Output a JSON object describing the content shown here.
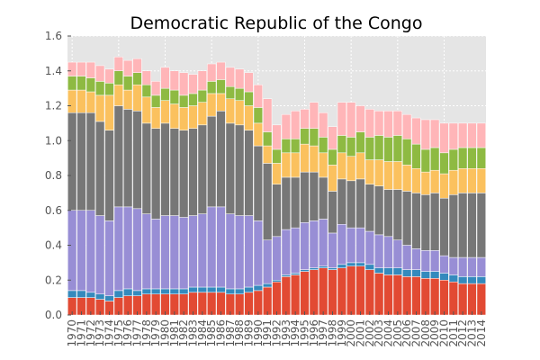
{
  "chart_data": {
    "type": "bar",
    "stacked": true,
    "title": "Democratic Republic of the Congo",
    "xlabel": "",
    "ylabel": "",
    "ylim": [
      0,
      1.6
    ],
    "yticks": [
      "0.0",
      "0.2",
      "0.4",
      "0.6",
      "0.8",
      "1.0",
      "1.2",
      "1.4",
      "1.6"
    ],
    "grid": true,
    "legend": "none",
    "background": "#e5e5e5",
    "categories": [
      "1970",
      "1971",
      "1972",
      "1973",
      "1974",
      "1975",
      "1976",
      "1977",
      "1978",
      "1979",
      "1980",
      "1981",
      "1982",
      "1983",
      "1984",
      "1985",
      "1986",
      "1987",
      "1988",
      "1989",
      "1990",
      "1991",
      "1992",
      "1993",
      "1994",
      "1995",
      "1996",
      "1997",
      "1998",
      "1999",
      "2000",
      "2001",
      "2002",
      "2003",
      "2004",
      "2005",
      "2006",
      "2007",
      "2008",
      "2009",
      "2010",
      "2011",
      "2012",
      "2013",
      "2014"
    ],
    "series": [
      {
        "color": "#e24a33",
        "values": [
          0.1,
          0.1,
          0.1,
          0.09,
          0.08,
          0.1,
          0.11,
          0.11,
          0.12,
          0.12,
          0.12,
          0.12,
          0.12,
          0.13,
          0.13,
          0.13,
          0.13,
          0.12,
          0.12,
          0.13,
          0.14,
          0.16,
          0.19,
          0.22,
          0.23,
          0.25,
          0.26,
          0.27,
          0.26,
          0.27,
          0.28,
          0.28,
          0.26,
          0.24,
          0.23,
          0.23,
          0.22,
          0.22,
          0.21,
          0.21,
          0.2,
          0.19,
          0.18,
          0.18,
          0.18
        ]
      },
      {
        "color": "#348abd",
        "values": [
          0.04,
          0.04,
          0.03,
          0.03,
          0.03,
          0.04,
          0.04,
          0.03,
          0.03,
          0.03,
          0.03,
          0.03,
          0.03,
          0.03,
          0.03,
          0.03,
          0.03,
          0.03,
          0.03,
          0.03,
          0.03,
          0.02,
          0.01,
          0.01,
          0.01,
          0.01,
          0.01,
          0.01,
          0.01,
          0.02,
          0.02,
          0.02,
          0.03,
          0.03,
          0.04,
          0.04,
          0.04,
          0.04,
          0.04,
          0.04,
          0.04,
          0.04,
          0.04,
          0.04,
          0.04
        ]
      },
      {
        "color": "#988ed5",
        "values": [
          0.46,
          0.46,
          0.47,
          0.45,
          0.43,
          0.48,
          0.47,
          0.47,
          0.43,
          0.4,
          0.42,
          0.42,
          0.41,
          0.41,
          0.42,
          0.46,
          0.46,
          0.43,
          0.42,
          0.41,
          0.37,
          0.25,
          0.25,
          0.26,
          0.26,
          0.27,
          0.27,
          0.27,
          0.2,
          0.23,
          0.2,
          0.2,
          0.19,
          0.19,
          0.18,
          0.16,
          0.14,
          0.12,
          0.12,
          0.12,
          0.1,
          0.1,
          0.11,
          0.11,
          0.11
        ]
      },
      {
        "color": "#777777",
        "values": [
          0.56,
          0.56,
          0.56,
          0.54,
          0.52,
          0.58,
          0.56,
          0.56,
          0.52,
          0.52,
          0.53,
          0.5,
          0.5,
          0.5,
          0.51,
          0.52,
          0.55,
          0.52,
          0.52,
          0.49,
          0.43,
          0.44,
          0.3,
          0.3,
          0.29,
          0.29,
          0.28,
          0.24,
          0.24,
          0.26,
          0.27,
          0.28,
          0.27,
          0.28,
          0.27,
          0.29,
          0.31,
          0.32,
          0.32,
          0.33,
          0.33,
          0.36,
          0.37,
          0.37,
          0.37
        ]
      },
      {
        "color": "#fbc15e",
        "values": [
          0.13,
          0.13,
          0.12,
          0.15,
          0.2,
          0.12,
          0.11,
          0.15,
          0.15,
          0.12,
          0.13,
          0.14,
          0.13,
          0.13,
          0.13,
          0.13,
          0.1,
          0.14,
          0.14,
          0.14,
          0.13,
          0.1,
          0.12,
          0.14,
          0.14,
          0.16,
          0.15,
          0.14,
          0.15,
          0.15,
          0.14,
          0.15,
          0.14,
          0.15,
          0.16,
          0.16,
          0.15,
          0.14,
          0.13,
          0.13,
          0.14,
          0.14,
          0.14,
          0.14,
          0.14
        ]
      },
      {
        "color": "#8eba42",
        "values": [
          0.08,
          0.08,
          0.08,
          0.08,
          0.07,
          0.08,
          0.08,
          0.07,
          0.07,
          0.07,
          0.07,
          0.08,
          0.07,
          0.07,
          0.07,
          0.07,
          0.08,
          0.07,
          0.07,
          0.08,
          0.09,
          0.08,
          0.08,
          0.08,
          0.08,
          0.09,
          0.1,
          0.09,
          0.09,
          0.1,
          0.11,
          0.12,
          0.13,
          0.14,
          0.14,
          0.15,
          0.15,
          0.14,
          0.13,
          0.13,
          0.12,
          0.12,
          0.12,
          0.12,
          0.12
        ]
      },
      {
        "color": "#ffb5b8",
        "values": [
          0.08,
          0.08,
          0.09,
          0.09,
          0.08,
          0.08,
          0.09,
          0.08,
          0.08,
          0.08,
          0.12,
          0.11,
          0.13,
          0.11,
          0.11,
          0.1,
          0.1,
          0.11,
          0.11,
          0.11,
          0.13,
          0.19,
          0.14,
          0.14,
          0.16,
          0.11,
          0.15,
          0.14,
          0.13,
          0.19,
          0.2,
          0.15,
          0.16,
          0.14,
          0.15,
          0.14,
          0.14,
          0.15,
          0.17,
          0.16,
          0.17,
          0.15,
          0.14,
          0.14,
          0.14
        ]
      }
    ]
  }
}
